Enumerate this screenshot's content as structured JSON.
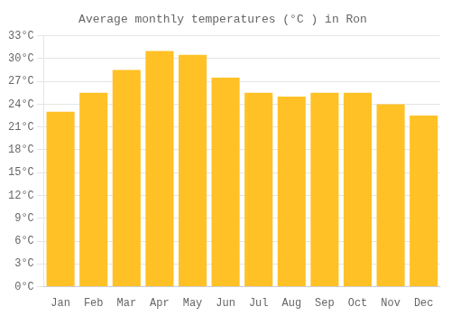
{
  "chart_data": {
    "type": "bar",
    "title": "Average monthly temperatures (°C ) in Ron",
    "categories": [
      "Jan",
      "Feb",
      "Mar",
      "Apr",
      "May",
      "Jun",
      "Jul",
      "Aug",
      "Sep",
      "Oct",
      "Nov",
      "Dec"
    ],
    "values": [
      23.0,
      25.5,
      28.5,
      31.0,
      30.5,
      27.5,
      25.5,
      25.0,
      25.5,
      25.5,
      24.0,
      22.5
    ],
    "color": "#FFC125",
    "ylim": [
      0,
      33
    ],
    "yticks": [
      {
        "value": 0,
        "label": "0°C"
      },
      {
        "value": 3,
        "label": "3°C"
      },
      {
        "value": 6,
        "label": "6°C"
      },
      {
        "value": 9,
        "label": "9°C"
      },
      {
        "value": 12,
        "label": "12°C"
      },
      {
        "value": 15,
        "label": "15°C"
      },
      {
        "value": 18,
        "label": "18°C"
      },
      {
        "value": 21,
        "label": "21°C"
      },
      {
        "value": 24,
        "label": "24°C"
      },
      {
        "value": 27,
        "label": "27°C"
      },
      {
        "value": 30,
        "label": "30°C"
      },
      {
        "value": 33,
        "label": "33°C"
      }
    ],
    "grid": true
  }
}
